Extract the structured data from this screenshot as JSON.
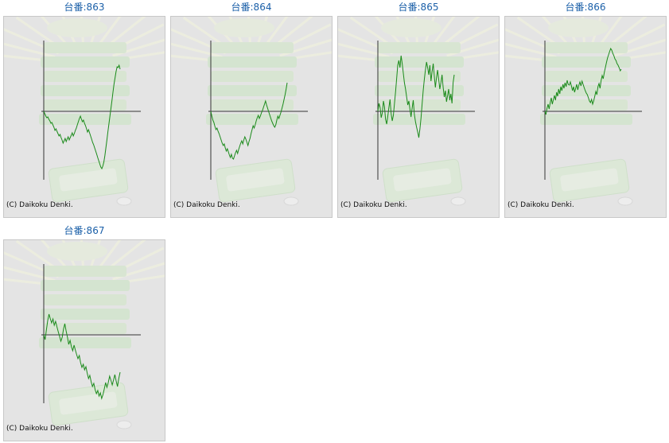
{
  "machines": [
    {
      "title": "台番:863",
      "copyright": "(C) Daikoku Denki.",
      "line_color": "#1a8a1a",
      "chart_data": {
        "type": "line",
        "y": [
          0,
          -3,
          -6,
          -8,
          -7,
          -10,
          -12,
          -15,
          -14,
          -17,
          -20,
          -24,
          -22,
          -25,
          -28,
          -31,
          -29,
          -33,
          -36,
          -40,
          -37,
          -34,
          -38,
          -35,
          -32,
          -36,
          -33,
          -30,
          -27,
          -31,
          -28,
          -24,
          -21,
          -17,
          -13,
          -9,
          -6,
          -10,
          -13,
          -11,
          -15,
          -18,
          -22,
          -26,
          -23,
          -27,
          -31,
          -35,
          -39,
          -42,
          -46,
          -50,
          -54,
          -58,
          -62,
          -66,
          -70,
          -72,
          -69,
          -64,
          -56,
          -46,
          -36,
          -26,
          -16,
          -6,
          4,
          14,
          24,
          34,
          42,
          50,
          56,
          55,
          58,
          53
        ]
      }
    },
    {
      "title": "台番:864",
      "copyright": "(C) Daikoku Denki.",
      "line_color": "#1a8a1a",
      "chart_data": {
        "type": "line",
        "y": [
          0,
          -6,
          -11,
          -14,
          -19,
          -23,
          -21,
          -25,
          -28,
          -32,
          -36,
          -40,
          -43,
          -41,
          -46,
          -50,
          -47,
          -51,
          -55,
          -58,
          -54,
          -59,
          -60,
          -56,
          -52,
          -49,
          -53,
          -48,
          -44,
          -40,
          -37,
          -41,
          -36,
          -32,
          -35,
          -39,
          -43,
          -38,
          -34,
          -28,
          -23,
          -18,
          -21,
          -17,
          -12,
          -8,
          -5,
          -9,
          -6,
          -2,
          1,
          5,
          9,
          13,
          8,
          4,
          0,
          -4,
          -8,
          -12,
          -15,
          -18,
          -20,
          -17,
          -11,
          -6,
          -9,
          -5,
          -1,
          4,
          9,
          15,
          21,
          28,
          36
        ]
      }
    },
    {
      "title": "台番:865",
      "copyright": "(C) Daikoku Denki.",
      "line_color": "#1a8a1a",
      "chart_data": {
        "type": "line",
        "y": [
          0,
          10,
          5,
          -8,
          -2,
          13,
          6,
          -10,
          -16,
          -6,
          5,
          15,
          -3,
          -12,
          -5,
          10,
          25,
          42,
          58,
          64,
          55,
          70,
          60,
          48,
          36,
          28,
          18,
          8,
          13,
          3,
          -7,
          4,
          14,
          -4,
          -13,
          -20,
          -26,
          -33,
          -22,
          -8,
          10,
          26,
          40,
          52,
          62,
          55,
          46,
          58,
          38,
          50,
          60,
          44,
          30,
          42,
          52,
          40,
          28,
          36,
          46,
          30,
          18,
          26,
          12,
          20,
          28,
          14,
          22,
          10,
          36,
          46
        ]
      }
    },
    {
      "title": "台番:866",
      "copyright": "(C) Daikoku Denki.",
      "line_color": "#1a8a1a",
      "chart_data": {
        "type": "line",
        "y": [
          0,
          -4,
          4,
          9,
          3,
          11,
          17,
          9,
          15,
          20,
          14,
          24,
          19,
          28,
          22,
          31,
          26,
          34,
          29,
          36,
          31,
          39,
          34,
          33,
          37,
          32,
          26,
          31,
          24,
          29,
          34,
          27,
          33,
          37,
          32,
          38,
          34,
          30,
          26,
          23,
          21,
          17,
          13,
          11,
          15,
          9,
          13,
          19,
          25,
          21,
          31,
          35,
          29,
          39,
          45,
          41,
          49,
          55,
          61,
          67,
          71,
          75,
          79,
          77,
          73,
          70,
          66,
          64,
          60,
          58,
          55,
          51,
          53
        ]
      }
    },
    {
      "title": "台番:867",
      "copyright": "(C) Daikoku Denki.",
      "line_color": "#1a8a1a",
      "chart_data": {
        "type": "line",
        "y": [
          0,
          -6,
          6,
          18,
          26,
          20,
          15,
          20,
          12,
          17,
          10,
          4,
          -2,
          -8,
          -3,
          7,
          14,
          5,
          -3,
          -12,
          -7,
          -15,
          -20,
          -13,
          -19,
          -25,
          -30,
          -26,
          -35,
          -41,
          -37,
          -44,
          -40,
          -48,
          -55,
          -51,
          -59,
          -65,
          -61,
          -69,
          -74,
          -70,
          -77,
          -73,
          -80,
          -75,
          -68,
          -60,
          -66,
          -60,
          -52,
          -57,
          -63,
          -57,
          -50,
          -58,
          -65,
          -55,
          -47
        ]
      }
    }
  ]
}
